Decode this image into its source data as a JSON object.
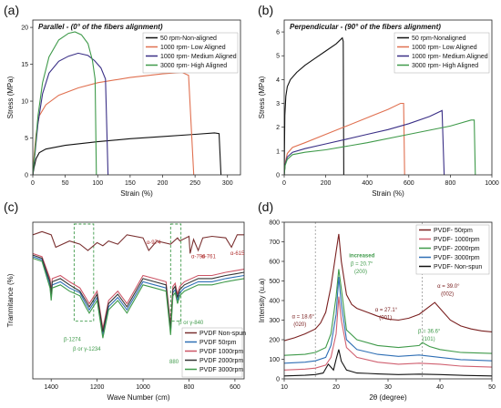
{
  "chart_data": [
    {
      "id": "a",
      "type": "line",
      "panel_label": "(a)",
      "title": "Parallel - (0° of the fibers alignment)",
      "xlabel": "Strain (%)",
      "ylabel": "Stress (MPa)",
      "xlim": [
        0,
        320
      ],
      "ylim": [
        0,
        21
      ],
      "xticks": [
        0,
        50,
        100,
        150,
        200,
        250,
        300
      ],
      "yticks": [
        0,
        5,
        10,
        15,
        20
      ],
      "legend_position": "top-right",
      "series": [
        {
          "name": "50 rpm-Non-aligned",
          "color": "#111111",
          "x": [
            0,
            2,
            5,
            10,
            20,
            50,
            100,
            150,
            200,
            250,
            280,
            287,
            290
          ],
          "y": [
            0,
            1.0,
            2.2,
            3.0,
            3.5,
            4.0,
            4.5,
            4.9,
            5.2,
            5.5,
            5.7,
            5.6,
            0
          ]
        },
        {
          "name": "1000 rpm- Low Aligned",
          "color": "#e07050",
          "x": [
            0,
            2,
            5,
            10,
            20,
            40,
            70,
            100,
            150,
            200,
            230,
            240,
            248
          ],
          "y": [
            0,
            2.5,
            5.5,
            8.0,
            9.5,
            10.8,
            11.8,
            12.5,
            13.2,
            13.7,
            13.9,
            13.5,
            0
          ]
        },
        {
          "name": "1000 rpm- Medium Aligned",
          "color": "#3a2f86",
          "x": [
            0,
            3,
            8,
            15,
            25,
            40,
            55,
            70,
            85,
            95,
            105,
            112,
            116
          ],
          "y": [
            0,
            2.5,
            7.0,
            11.0,
            13.8,
            15.4,
            16.1,
            16.5,
            16.2,
            15.5,
            14.5,
            13.0,
            0
          ]
        },
        {
          "name": "3000 rpm- High Aligned",
          "color": "#3f9a4a",
          "x": [
            0,
            3,
            8,
            15,
            25,
            40,
            55,
            65,
            75,
            85,
            92,
            96,
            98
          ],
          "y": [
            0,
            2.8,
            8.0,
            12.5,
            16.0,
            18.3,
            19.2,
            19.4,
            19.0,
            17.8,
            15.5,
            13.0,
            0
          ]
        }
      ]
    },
    {
      "id": "b",
      "type": "line",
      "panel_label": "(b)",
      "title": "Perpendicular - (90° of the fibers alignment)",
      "xlabel": "Strain (%)",
      "ylabel": "Stress (MPa)",
      "xlim": [
        0,
        1000
      ],
      "ylim": [
        0,
        6.5
      ],
      "xticks": [
        0,
        200,
        400,
        600,
        800,
        1000
      ],
      "yticks": [
        0,
        1,
        2,
        3,
        4,
        5,
        6
      ],
      "legend_position": "top-right",
      "series": [
        {
          "name": "50 rpm-Nonaligned",
          "color": "#111111",
          "x": [
            0,
            3,
            8,
            15,
            30,
            60,
            100,
            150,
            200,
            250,
            280,
            284,
            287
          ],
          "y": [
            0,
            2.5,
            3.3,
            3.7,
            4.0,
            4.3,
            4.6,
            4.9,
            5.2,
            5.5,
            5.75,
            5.6,
            0
          ]
        },
        {
          "name": "1000 rpm- Low Aligned",
          "color": "#e07050",
          "x": [
            0,
            5,
            15,
            40,
            100,
            200,
            300,
            400,
            500,
            560,
            575,
            580
          ],
          "y": [
            0,
            0.5,
            0.9,
            1.15,
            1.35,
            1.7,
            2.05,
            2.4,
            2.75,
            3.0,
            3.0,
            0
          ]
        },
        {
          "name": "1000 rpm- Medium Aligned",
          "color": "#3a2f86",
          "x": [
            0,
            5,
            15,
            40,
            100,
            200,
            300,
            400,
            500,
            600,
            700,
            760,
            770
          ],
          "y": [
            0,
            0.45,
            0.75,
            0.95,
            1.1,
            1.3,
            1.5,
            1.7,
            1.9,
            2.15,
            2.45,
            2.7,
            0
          ]
        },
        {
          "name": "3000 rpm- High Aligned",
          "color": "#3f9a4a",
          "x": [
            0,
            5,
            15,
            40,
            100,
            200,
            400,
            600,
            800,
            900,
            915,
            920
          ],
          "y": [
            0,
            0.4,
            0.65,
            0.85,
            0.95,
            1.05,
            1.35,
            1.7,
            2.05,
            2.3,
            2.3,
            0
          ]
        }
      ]
    },
    {
      "id": "c",
      "type": "line",
      "panel_label": "(c)",
      "xlabel": "Wave Number (cm)",
      "ylabel": "Tranmitance (%)",
      "xlim": [
        1480,
        560
      ],
      "ylim": [
        0,
        100
      ],
      "xticks": [
        1400,
        1200,
        1000,
        800,
        600
      ],
      "legend_position": "bottom-right",
      "series": [
        {
          "name": "PVDF Non-spun",
          "color": "#7a3030",
          "x": [
            1480,
            1440,
            1400,
            1380,
            1320,
            1275,
            1240,
            1200,
            1175,
            1150,
            1110,
            1070,
            1000,
            975,
            940,
            880,
            850,
            840,
            800,
            795,
            780,
            760,
            740,
            700,
            640,
            615,
            590,
            560
          ],
          "y": [
            92,
            94,
            92,
            84,
            88,
            86,
            82,
            87,
            85,
            88,
            86,
            92,
            90,
            82,
            88,
            86,
            90,
            88,
            91,
            80,
            89,
            82,
            90,
            91,
            90,
            84,
            92,
            92
          ]
        },
        {
          "name": "PVDF 50rpm",
          "color": "#2f6fb5",
          "x": [
            1480,
            1440,
            1405,
            1400,
            1395,
            1360,
            1320,
            1275,
            1250,
            1234,
            1200,
            1175,
            1150,
            1110,
            1070,
            1000,
            950,
            900,
            880,
            870,
            860,
            850,
            840,
            820,
            760,
            700,
            640,
            600,
            560
          ],
          "y": [
            78,
            76,
            60,
            52,
            60,
            62,
            58,
            55,
            48,
            44,
            52,
            28,
            46,
            52,
            44,
            62,
            60,
            58,
            30,
            55,
            57,
            50,
            55,
            58,
            62,
            62,
            64,
            65,
            66
          ]
        },
        {
          "name": "PVDF 1000rpm",
          "color": "#cc5566",
          "x": [
            1480,
            1440,
            1405,
            1400,
            1395,
            1360,
            1320,
            1275,
            1250,
            1234,
            1200,
            1175,
            1150,
            1110,
            1070,
            1000,
            950,
            900,
            880,
            870,
            860,
            850,
            840,
            820,
            760,
            700,
            640,
            600,
            560
          ],
          "y": [
            80,
            78,
            64,
            56,
            64,
            66,
            62,
            58,
            52,
            48,
            56,
            32,
            50,
            56,
            48,
            66,
            64,
            62,
            34,
            59,
            61,
            54,
            59,
            62,
            66,
            66,
            68,
            69,
            70
          ]
        },
        {
          "name": "PVDF 2000rpm",
          "color": "#333333",
          "x": [
            1480,
            1440,
            1405,
            1400,
            1395,
            1360,
            1320,
            1275,
            1250,
            1234,
            1200,
            1175,
            1150,
            1110,
            1070,
            1000,
            950,
            900,
            880,
            870,
            860,
            850,
            840,
            820,
            760,
            700,
            640,
            600,
            560
          ],
          "y": [
            79,
            77,
            62,
            54,
            62,
            64,
            60,
            56,
            50,
            46,
            54,
            30,
            48,
            54,
            46,
            64,
            62,
            60,
            32,
            57,
            59,
            52,
            57,
            60,
            64,
            64,
            66,
            67,
            68
          ]
        },
        {
          "name": "PVDF 3000rpm",
          "color": "#3f9a4a",
          "x": [
            1480,
            1440,
            1405,
            1400,
            1395,
            1360,
            1320,
            1275,
            1250,
            1234,
            1200,
            1175,
            1150,
            1110,
            1070,
            1000,
            950,
            900,
            880,
            870,
            860,
            850,
            840,
            820,
            760,
            700,
            640,
            600,
            560
          ],
          "y": [
            77,
            75,
            58,
            50,
            58,
            60,
            56,
            53,
            46,
            42,
            50,
            26,
            44,
            50,
            42,
            60,
            58,
            56,
            28,
            53,
            55,
            48,
            53,
            56,
            60,
            60,
            62,
            63,
            64
          ]
        }
      ],
      "annotations": [
        {
          "text": "α-974",
          "x": 985,
          "y": 86,
          "color": "#b03030"
        },
        {
          "text": "α-796",
          "x": 790,
          "y": 77,
          "color": "#b03030"
        },
        {
          "text": "α-761",
          "x": 745,
          "y": 77,
          "color": "#b03030"
        },
        {
          "text": "α-615",
          "x": 620,
          "y": 79,
          "color": "#b03030"
        },
        {
          "text": "β-1274",
          "x": 1345,
          "y": 24,
          "color": "#3f9a4a"
        },
        {
          "text": "β or γ-1234",
          "x": 1305,
          "y": 18,
          "color": "#3f9a4a"
        },
        {
          "text": "β or γ-840",
          "x": 845,
          "y": 35,
          "color": "#3f9a4a"
        },
        {
          "text": "880",
          "x": 885,
          "y": 10,
          "color": "#3f9a4a"
        }
      ]
    },
    {
      "id": "d",
      "type": "line",
      "panel_label": "(d)",
      "xlabel": "2θ (degree)",
      "ylabel": "Intensity (u.a)",
      "xlim": [
        10,
        50
      ],
      "ylim": [
        0,
        800
      ],
      "xticks": [
        10,
        20,
        30,
        40,
        50
      ],
      "yticks": [
        0,
        100,
        200,
        300,
        400,
        500,
        600,
        700,
        800
      ],
      "legend_position": "top-right",
      "series": [
        {
          "name": "PVDF- 50rpm",
          "color": "#7a2020",
          "x": [
            10,
            12,
            14,
            16,
            17,
            18,
            19,
            20,
            20.5,
            21,
            22,
            23,
            24,
            26,
            28,
            30,
            32,
            34,
            36,
            38,
            39,
            40,
            42,
            44,
            46,
            48,
            50
          ],
          "y": [
            195,
            210,
            230,
            255,
            285,
            340,
            470,
            650,
            740,
            600,
            430,
            380,
            360,
            340,
            320,
            305,
            300,
            310,
            330,
            370,
            390,
            360,
            300,
            270,
            255,
            245,
            240
          ]
        },
        {
          "name": "PVDF- 1000rpm",
          "color": "#d06070",
          "x": [
            10,
            14,
            16,
            18,
            19,
            20,
            20.5,
            21,
            22,
            24,
            28,
            32,
            36,
            40,
            44,
            50
          ],
          "y": [
            45,
            50,
            55,
            70,
            110,
            230,
            420,
            300,
            160,
            110,
            85,
            75,
            80,
            75,
            65,
            60
          ]
        },
        {
          "name": "PVDF- 2000rpm",
          "color": "#3f9a4a",
          "x": [
            10,
            14,
            16,
            18,
            19,
            20,
            20.5,
            21,
            22,
            24,
            28,
            32,
            36,
            36.6,
            38,
            40,
            44,
            50
          ],
          "y": [
            120,
            125,
            135,
            160,
            230,
            420,
            560,
            460,
            250,
            200,
            170,
            160,
            170,
            185,
            165,
            150,
            135,
            130
          ]
        },
        {
          "name": "PVDF- 3000rpm",
          "color": "#2f6fb5",
          "x": [
            10,
            14,
            16,
            18,
            19,
            20,
            20.5,
            21,
            22,
            24,
            28,
            32,
            36,
            40,
            44,
            50
          ],
          "y": [
            80,
            85,
            92,
            110,
            170,
            330,
            520,
            380,
            200,
            150,
            125,
            115,
            122,
            110,
            98,
            92
          ]
        },
        {
          "name": "PVDF- Non-spun",
          "color": "#111111",
          "x": [
            10,
            14,
            16,
            17.5,
            18.5,
            19.5,
            20,
            20.5,
            21,
            22,
            24,
            26,
            28,
            32,
            36,
            40,
            44,
            50
          ],
          "y": [
            15,
            18,
            22,
            30,
            75,
            45,
            100,
            150,
            90,
            45,
            30,
            28,
            25,
            22,
            24,
            22,
            18,
            15
          ]
        }
      ],
      "annotations": [
        {
          "text": "α = 18.6°",
          "x": 11.5,
          "y": 310,
          "color": "#7a2020"
        },
        {
          "text": "(020)",
          "x": 11.8,
          "y": 270,
          "color": "#7a2020"
        },
        {
          "text": "increased",
          "x": 22.5,
          "y": 620,
          "color": "#3f9a4a"
        },
        {
          "text": "β = 20.7°",
          "x": 22.8,
          "y": 580,
          "color": "#3f9a4a"
        },
        {
          "text": "(200)",
          "x": 23.5,
          "y": 540,
          "color": "#3f9a4a"
        },
        {
          "text": "α = 27.1°",
          "x": 27.5,
          "y": 345,
          "color": "#7a2020"
        },
        {
          "text": "(001)",
          "x": 28.3,
          "y": 305,
          "color": "#7a2020"
        },
        {
          "text": "α = 39.0°",
          "x": 39.5,
          "y": 465,
          "color": "#7a2020"
        },
        {
          "text": "(002)",
          "x": 40.2,
          "y": 425,
          "color": "#7a2020"
        },
        {
          "text": "β = 36.6°",
          "x": 35.8,
          "y": 235,
          "color": "#3f9a4a"
        },
        {
          "text": "(101)",
          "x": 36.6,
          "y": 195,
          "color": "#3f9a4a"
        }
      ],
      "dashed_verticals": [
        16,
        36.6
      ]
    }
  ],
  "panel_c_box_dashed": [
    [
      1300,
      1215
    ],
    [
      880,
      835
    ]
  ]
}
